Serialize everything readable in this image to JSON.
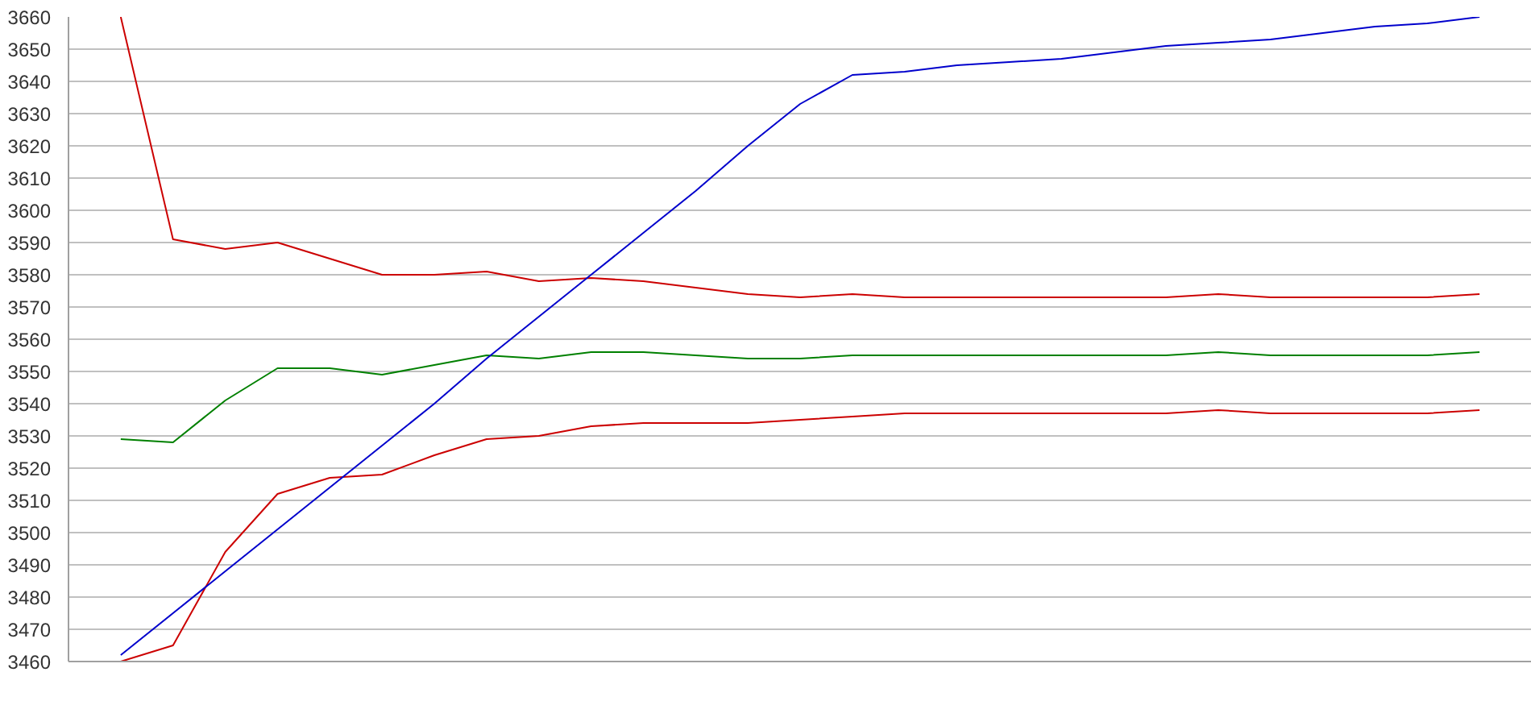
{
  "chart_data": {
    "type": "line",
    "categories": [
      null,
      null,
      null,
      null,
      null,
      null,
      null,
      null,
      null,
      null,
      null,
      null,
      null,
      null,
      null,
      null,
      null,
      null,
      null,
      null,
      null,
      null,
      null,
      null,
      null,
      null,
      null
    ],
    "ylim": [
      3460,
      3660
    ],
    "yticks": [
      3460,
      3470,
      3480,
      3490,
      3500,
      3510,
      3520,
      3530,
      3540,
      3550,
      3560,
      3570,
      3580,
      3590,
      3600,
      3610,
      3620,
      3630,
      3640,
      3650,
      3660
    ],
    "grid": "y",
    "marker": "none",
    "line_style": "solid",
    "series": [
      {
        "color": "#cc0000",
        "values": [
          3660,
          3591,
          3588,
          3590,
          3585,
          3580,
          3580,
          3581,
          3578,
          3579,
          3578,
          3576,
          3574,
          3573,
          3574,
          3573,
          3573,
          3573,
          3573,
          3573,
          3573,
          3574,
          3573,
          3573,
          3573,
          3573,
          3574
        ]
      },
      {
        "color": "#008000",
        "values": [
          3529,
          3528,
          3541,
          3551,
          3551,
          3549,
          3552,
          3555,
          3554,
          3556,
          3556,
          3555,
          3554,
          3554,
          3555,
          3555,
          3555,
          3555,
          3555,
          3555,
          3555,
          3556,
          3555,
          3555,
          3555,
          3555,
          3556
        ]
      },
      {
        "color": "#cc0000",
        "values": [
          3460,
          3465,
          3494,
          3512,
          3517,
          3518,
          3524,
          3529,
          3530,
          3533,
          3534,
          3534,
          3534,
          3535,
          3536,
          3537,
          3537,
          3537,
          3537,
          3537,
          3537,
          3538,
          3537,
          3537,
          3537,
          3537,
          3538
        ]
      },
      {
        "color": "#0000cc",
        "values": [
          3462,
          3475,
          3488,
          3501,
          3514,
          3527,
          3540,
          3554,
          3567,
          3580,
          3593,
          3606,
          3620,
          3633,
          3642,
          3643,
          3645,
          3646,
          3647,
          3649,
          3651,
          3652,
          3653,
          3655,
          3657,
          3658,
          3660
        ]
      }
    ]
  }
}
